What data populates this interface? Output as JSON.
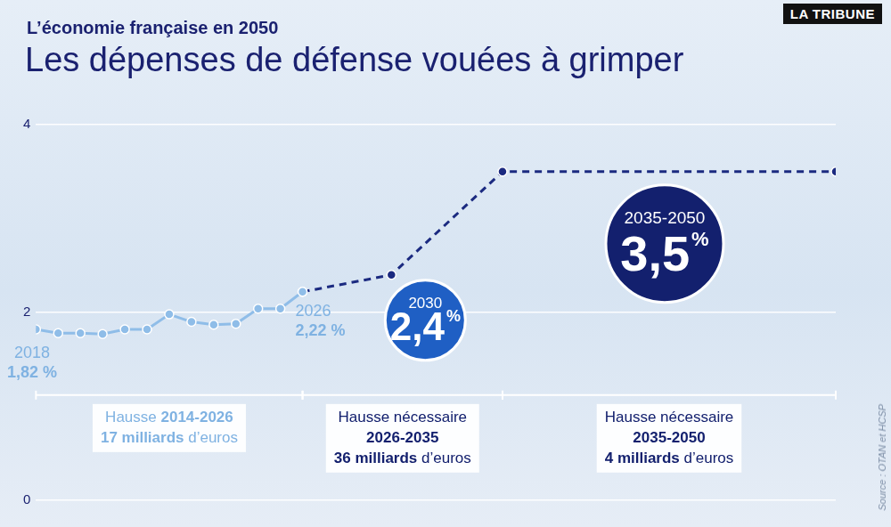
{
  "chart_data": {
    "type": "line",
    "subtitle": "L’économie française en 2050",
    "title": "Les dépenses de défense vouées à grimper",
    "brand": "LA TRIBUNE",
    "source": "Source : OTAN et HCSP",
    "x": [
      2014,
      2015,
      2016,
      2017,
      2018,
      2019,
      2020,
      2021,
      2022,
      2023,
      2024,
      2025,
      2026,
      2030,
      2035,
      2050
    ],
    "series": [
      {
        "color": "#8fbde8",
        "line_style": "solid",
        "marker": "circle",
        "values": [
          1.82,
          1.78,
          1.78,
          1.77,
          1.82,
          1.82,
          1.98,
          1.9,
          1.87,
          1.88,
          2.04,
          2.04,
          2.22,
          null,
          null,
          null
        ]
      },
      {
        "color": "#1b2a80",
        "line_style": "dashed",
        "marker": "circle",
        "values": [
          null,
          null,
          null,
          null,
          null,
          null,
          null,
          null,
          null,
          null,
          null,
          null,
          2.22,
          2.4,
          3.5,
          3.5
        ]
      }
    ],
    "xlim": [
      2014,
      2050
    ],
    "ylim": [
      0,
      4
    ],
    "yticks": [
      0,
      2,
      4
    ],
    "grid": true,
    "tick_labels": "y",
    "annotations": [
      {
        "x": 2014,
        "value": 1.82,
        "title": "2018",
        "label": "1,82 %",
        "color": "#7fb2e2"
      },
      {
        "x": 2026,
        "value": 2.22,
        "title": "2026",
        "label": "2,22 %",
        "color": "#7fb2e2"
      },
      {
        "x": 2030,
        "value": 2.4,
        "title": "2030",
        "label": "2,4 %",
        "color": "#1f5fc4"
      },
      {
        "x": 2035,
        "value": 3.5,
        "title": "2035-2050",
        "label": "3,5 %",
        "color": "#13206e"
      }
    ],
    "periods": [
      {
        "start": 2014,
        "end": 2026,
        "lines": [
          "Hausse 2014-2026",
          "17 milliards d’euros"
        ],
        "color": "#7fb2e2"
      },
      {
        "start": 2026,
        "end": 2035,
        "lines": [
          "Hausse nécessaire",
          "2026-2035",
          "36 milliards d’euros"
        ],
        "color": "#13206e"
      },
      {
        "start": 2035,
        "end": 2050,
        "lines": [
          "Hausse nécessaire",
          "2035-2050",
          "4 milliards d’euros"
        ],
        "color": "#13206e"
      }
    ]
  }
}
